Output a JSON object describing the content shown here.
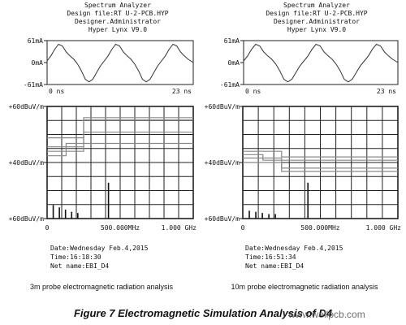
{
  "panels": [
    {
      "header": [
        "Spectrum Analyzer",
        "Design file:RT U-2-PCB.HYP",
        "Designer.Administrator",
        "Hyper Lynx V9.0"
      ],
      "caption": "3m probe electromagnetic radiation analysis",
      "footer": {
        "date": "Date:Wednesday Feb.4,2015",
        "time": "Time:16:18:30",
        "net": "Net name:EBI_D4"
      }
    },
    {
      "header": [
        "Spectrum Analyzer",
        "Design file:RT U-2-PCB.HYP",
        "Designer.Administrator",
        "Hyper Lynx V9.0"
      ],
      "caption": "10m probe electromagnetic radiation analysis",
      "footer": {
        "date": "Date:Wednesday Feb.4,2015",
        "time": "Time:16:51:34",
        "net": "Net name:EBI_D4"
      }
    }
  ],
  "figure_title": "Figure 7 Electromagnetic Simulation Analysis of D4",
  "watermark": "www.wellpcb.com",
  "chart_data": [
    {
      "type": "line",
      "title": "",
      "panel": 0,
      "time_plot": {
        "y_ticks": [
          "61mA",
          "0mA",
          "-61mA"
        ],
        "x_ticks": [
          "0 ns",
          "23 ns"
        ],
        "xlim": [
          0,
          23
        ],
        "ylim": [
          -61,
          61
        ],
        "series": [
          {
            "x": [
              0,
              0.6,
              1.2,
              1.8,
              2.4,
              3.0,
              3.6,
              4.2,
              4.8,
              5.4,
              6.0,
              6.6,
              7.2,
              7.8,
              8.4,
              9.0,
              9.6,
              10.2,
              10.8,
              11.4,
              12.0,
              12.6,
              13.2,
              13.8,
              14.4,
              15.0,
              15.6,
              16.2,
              16.8,
              17.4,
              18.0,
              18.6,
              19.2,
              19.8,
              20.4,
              21.0,
              21.6,
              22.2,
              23.0
            ],
            "y": [
              5,
              20,
              40,
              55,
              50,
              32,
              20,
              10,
              -5,
              -25,
              -50,
              -58,
              -50,
              -30,
              -10,
              5,
              20,
              40,
              55,
              50,
              32,
              20,
              10,
              -5,
              -25,
              -50,
              -58,
              -50,
              -30,
              -10,
              5,
              20,
              40,
              55,
              50,
              32,
              20,
              10,
              0
            ]
          }
        ]
      },
      "spectrum_plot": {
        "y_ticks": [
          "+60dBuV/m",
          "+40dBuV/m",
          "+60dBuV/m"
        ],
        "x_ticks": [
          "0",
          "500.000MHz",
          "1.000 GHz"
        ],
        "xlim": [
          0,
          1000
        ],
        "limit_lines": [
          {
            "x": [
              0,
              250,
              250,
              1000
            ],
            "level": [
              0.28,
              0.28,
              0.1,
              0.1
            ]
          },
          {
            "x": [
              0,
              250,
              250,
              1000
            ],
            "level": [
              0.4,
              0.4,
              0.12,
              0.12
            ]
          },
          {
            "x": [
              0,
              250,
              250,
              1000
            ],
            "level": [
              0.36,
              0.36,
              0.23,
              0.23
            ]
          },
          {
            "x": [
              0,
              130,
              130,
              1000
            ],
            "level": [
              0.44,
              0.44,
              0.33,
              0.33
            ]
          }
        ],
        "peaks": [
          {
            "x": 42,
            "level": 0.88
          },
          {
            "x": 84,
            "level": 0.9
          },
          {
            "x": 126,
            "level": 0.92
          },
          {
            "x": 168,
            "level": 0.94
          },
          {
            "x": 210,
            "level": 0.95
          },
          {
            "x": 420,
            "level": 0.68
          }
        ]
      }
    },
    {
      "type": "line",
      "title": "",
      "panel": 1,
      "time_plot": {
        "y_ticks": [
          "61mA",
          "0mA",
          "-61mA"
        ],
        "x_ticks": [
          "0 ns",
          "23 ns"
        ],
        "xlim": [
          0,
          23
        ],
        "ylim": [
          -61,
          61
        ],
        "series": [
          {
            "x": [
              0,
              0.6,
              1.2,
              1.8,
              2.4,
              3.0,
              3.6,
              4.2,
              4.8,
              5.4,
              6.0,
              6.6,
              7.2,
              7.8,
              8.4,
              9.0,
              9.6,
              10.2,
              10.8,
              11.4,
              12.0,
              12.6,
              13.2,
              13.8,
              14.4,
              15.0,
              15.6,
              16.2,
              16.8,
              17.4,
              18.0,
              18.6,
              19.2,
              19.8,
              20.4,
              21.0,
              21.6,
              22.2,
              23.0
            ],
            "y": [
              5,
              20,
              40,
              55,
              50,
              32,
              20,
              10,
              -5,
              -25,
              -50,
              -58,
              -50,
              -30,
              -10,
              5,
              20,
              40,
              55,
              50,
              32,
              20,
              10,
              -5,
              -25,
              -50,
              -58,
              -50,
              -30,
              -10,
              5,
              20,
              40,
              55,
              50,
              32,
              20,
              10,
              0
            ]
          }
        ]
      },
      "spectrum_plot": {
        "y_ticks": [
          "+60dBuV/m",
          "+40dBuV/m",
          "+60dBuV/m"
        ],
        "x_ticks": [
          "0",
          "500.000MHz",
          "1.000 GHz"
        ],
        "xlim": [
          0,
          1000
        ],
        "limit_lines": [
          {
            "x": [
              0,
              250,
              250,
              1000
            ],
            "level": [
              0.46,
              0.46,
              0.55,
              0.55
            ]
          },
          {
            "x": [
              0,
              250,
              250,
              1000
            ],
            "level": [
              0.5,
              0.5,
              0.58,
              0.58
            ]
          },
          {
            "x": [
              0,
              250,
              250,
              1000
            ],
            "level": [
              0.4,
              0.4,
              0.45,
              0.45
            ]
          },
          {
            "x": [
              0,
              130,
              130,
              1000
            ],
            "level": [
              0.43,
              0.43,
              0.48,
              0.48
            ]
          }
        ],
        "peaks": [
          {
            "x": 42,
            "level": 0.93
          },
          {
            "x": 84,
            "level": 0.94
          },
          {
            "x": 126,
            "level": 0.95
          },
          {
            "x": 168,
            "level": 0.96
          },
          {
            "x": 210,
            "level": 0.96
          },
          {
            "x": 420,
            "level": 0.68
          }
        ]
      }
    }
  ]
}
